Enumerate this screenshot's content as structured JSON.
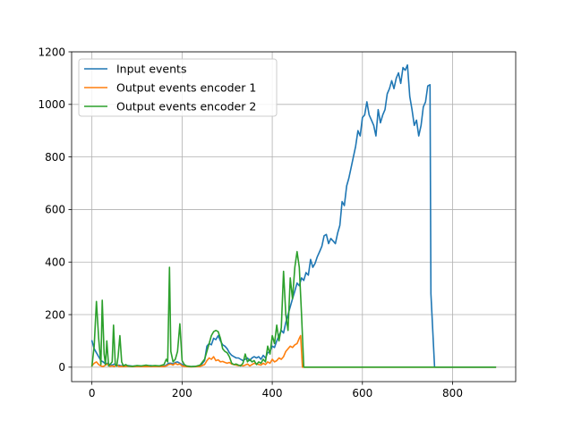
{
  "chart_data": {
    "type": "line",
    "title": "",
    "xlabel": "",
    "ylabel": "",
    "xlim": [
      -45,
      940
    ],
    "ylim": [
      -55,
      1200
    ],
    "xticks": [
      0,
      200,
      400,
      600,
      800
    ],
    "yticks": [
      0,
      200,
      400,
      600,
      800,
      1000,
      1200
    ],
    "grid": true,
    "legend_position": "upper-left",
    "series": [
      {
        "name": "Input events",
        "color": "#1f77b4",
        "points": [
          [
            0,
            100
          ],
          [
            5,
            70
          ],
          [
            10,
            55
          ],
          [
            15,
            40
          ],
          [
            20,
            25
          ],
          [
            25,
            20
          ],
          [
            30,
            12
          ],
          [
            35,
            15
          ],
          [
            40,
            10
          ],
          [
            45,
            8
          ],
          [
            50,
            12
          ],
          [
            55,
            5
          ],
          [
            60,
            8
          ],
          [
            65,
            5
          ],
          [
            70,
            8
          ],
          [
            75,
            4
          ],
          [
            80,
            6
          ],
          [
            90,
            4
          ],
          [
            100,
            5
          ],
          [
            110,
            4
          ],
          [
            120,
            4
          ],
          [
            130,
            6
          ],
          [
            140,
            4
          ],
          [
            150,
            5
          ],
          [
            160,
            4
          ],
          [
            165,
            8
          ],
          [
            170,
            15
          ],
          [
            175,
            15
          ],
          [
            180,
            12
          ],
          [
            185,
            18
          ],
          [
            190,
            20
          ],
          [
            195,
            15
          ],
          [
            200,
            10
          ],
          [
            210,
            3
          ],
          [
            220,
            2
          ],
          [
            230,
            3
          ],
          [
            240,
            4
          ],
          [
            250,
            25
          ],
          [
            255,
            80
          ],
          [
            260,
            90
          ],
          [
            265,
            85
          ],
          [
            270,
            110
          ],
          [
            275,
            105
          ],
          [
            280,
            120
          ],
          [
            285,
            100
          ],
          [
            290,
            85
          ],
          [
            295,
            80
          ],
          [
            300,
            70
          ],
          [
            305,
            55
          ],
          [
            310,
            45
          ],
          [
            315,
            40
          ],
          [
            320,
            35
          ],
          [
            325,
            35
          ],
          [
            330,
            30
          ],
          [
            335,
            25
          ],
          [
            340,
            30
          ],
          [
            345,
            35
          ],
          [
            350,
            25
          ],
          [
            355,
            35
          ],
          [
            360,
            40
          ],
          [
            365,
            35
          ],
          [
            370,
            40
          ],
          [
            375,
            30
          ],
          [
            380,
            45
          ],
          [
            385,
            35
          ],
          [
            390,
            55
          ],
          [
            395,
            60
          ],
          [
            400,
            80
          ],
          [
            405,
            75
          ],
          [
            410,
            100
          ],
          [
            415,
            120
          ],
          [
            420,
            140
          ],
          [
            425,
            130
          ],
          [
            430,
            170
          ],
          [
            435,
            200
          ],
          [
            440,
            230
          ],
          [
            445,
            260
          ],
          [
            450,
            290
          ],
          [
            455,
            320
          ],
          [
            460,
            310
          ],
          [
            465,
            340
          ],
          [
            470,
            330
          ],
          [
            475,
            360
          ],
          [
            480,
            350
          ],
          [
            485,
            410
          ],
          [
            490,
            380
          ],
          [
            495,
            395
          ],
          [
            500,
            420
          ],
          [
            505,
            440
          ],
          [
            510,
            460
          ],
          [
            515,
            500
          ],
          [
            520,
            505
          ],
          [
            525,
            470
          ],
          [
            530,
            490
          ],
          [
            535,
            480
          ],
          [
            540,
            470
          ],
          [
            545,
            510
          ],
          [
            550,
            540
          ],
          [
            555,
            630
          ],
          [
            560,
            615
          ],
          [
            565,
            690
          ],
          [
            570,
            720
          ],
          [
            575,
            760
          ],
          [
            580,
            800
          ],
          [
            585,
            840
          ],
          [
            590,
            900
          ],
          [
            595,
            880
          ],
          [
            600,
            950
          ],
          [
            605,
            960
          ],
          [
            610,
            1010
          ],
          [
            615,
            960
          ],
          [
            620,
            940
          ],
          [
            625,
            920
          ],
          [
            630,
            880
          ],
          [
            635,
            980
          ],
          [
            640,
            930
          ],
          [
            645,
            960
          ],
          [
            650,
            980
          ],
          [
            655,
            1040
          ],
          [
            660,
            1060
          ],
          [
            665,
            1090
          ],
          [
            670,
            1060
          ],
          [
            675,
            1100
          ],
          [
            680,
            1120
          ],
          [
            685,
            1080
          ],
          [
            690,
            1140
          ],
          [
            695,
            1130
          ],
          [
            700,
            1150
          ],
          [
            705,
            1030
          ],
          [
            710,
            980
          ],
          [
            715,
            920
          ],
          [
            720,
            940
          ],
          [
            725,
            880
          ],
          [
            730,
            920
          ],
          [
            735,
            990
          ],
          [
            740,
            1010
          ],
          [
            745,
            1070
          ],
          [
            750,
            1075
          ],
          [
            752,
            280
          ],
          [
            760,
            0
          ],
          [
            895,
            0
          ]
        ]
      },
      {
        "name": "Output events encoder 1",
        "color": "#ff7f0e",
        "points": [
          [
            0,
            5
          ],
          [
            5,
            15
          ],
          [
            10,
            20
          ],
          [
            15,
            10
          ],
          [
            20,
            5
          ],
          [
            25,
            2
          ],
          [
            30,
            8
          ],
          [
            35,
            12
          ],
          [
            40,
            3
          ],
          [
            45,
            5
          ],
          [
            50,
            2
          ],
          [
            55,
            10
          ],
          [
            60,
            2
          ],
          [
            65,
            3
          ],
          [
            70,
            2
          ],
          [
            80,
            4
          ],
          [
            90,
            2
          ],
          [
            100,
            3
          ],
          [
            120,
            2
          ],
          [
            140,
            3
          ],
          [
            160,
            2
          ],
          [
            165,
            5
          ],
          [
            170,
            10
          ],
          [
            175,
            12
          ],
          [
            180,
            8
          ],
          [
            185,
            15
          ],
          [
            190,
            10
          ],
          [
            195,
            12
          ],
          [
            200,
            5
          ],
          [
            210,
            2
          ],
          [
            220,
            1
          ],
          [
            230,
            2
          ],
          [
            240,
            3
          ],
          [
            250,
            10
          ],
          [
            255,
            25
          ],
          [
            260,
            35
          ],
          [
            265,
            30
          ],
          [
            270,
            40
          ],
          [
            275,
            25
          ],
          [
            280,
            28
          ],
          [
            285,
            20
          ],
          [
            290,
            22
          ],
          [
            295,
            18
          ],
          [
            300,
            15
          ],
          [
            305,
            18
          ],
          [
            310,
            12
          ],
          [
            315,
            10
          ],
          [
            320,
            8
          ],
          [
            325,
            6
          ],
          [
            330,
            8
          ],
          [
            335,
            5
          ],
          [
            340,
            8
          ],
          [
            345,
            12
          ],
          [
            350,
            5
          ],
          [
            355,
            10
          ],
          [
            360,
            15
          ],
          [
            365,
            12
          ],
          [
            370,
            10
          ],
          [
            375,
            8
          ],
          [
            380,
            15
          ],
          [
            385,
            10
          ],
          [
            390,
            20
          ],
          [
            395,
            15
          ],
          [
            400,
            30
          ],
          [
            405,
            20
          ],
          [
            410,
            25
          ],
          [
            415,
            35
          ],
          [
            420,
            30
          ],
          [
            425,
            40
          ],
          [
            430,
            60
          ],
          [
            435,
            70
          ],
          [
            440,
            80
          ],
          [
            445,
            75
          ],
          [
            450,
            85
          ],
          [
            455,
            90
          ],
          [
            460,
            110
          ],
          [
            463,
            120
          ],
          [
            467,
            0
          ],
          [
            895,
            0
          ]
        ]
      },
      {
        "name": "Output events encoder 2",
        "color": "#2ca02c",
        "points": [
          [
            0,
            5
          ],
          [
            5,
            80
          ],
          [
            10,
            250
          ],
          [
            15,
            110
          ],
          [
            20,
            10
          ],
          [
            23,
            255
          ],
          [
            27,
            50
          ],
          [
            30,
            10
          ],
          [
            33,
            100
          ],
          [
            37,
            5
          ],
          [
            40,
            10
          ],
          [
            45,
            20
          ],
          [
            48,
            160
          ],
          [
            52,
            10
          ],
          [
            55,
            5
          ],
          [
            58,
            40
          ],
          [
            62,
            120
          ],
          [
            66,
            20
          ],
          [
            70,
            5
          ],
          [
            75,
            10
          ],
          [
            80,
            5
          ],
          [
            90,
            3
          ],
          [
            100,
            6
          ],
          [
            110,
            5
          ],
          [
            120,
            8
          ],
          [
            130,
            5
          ],
          [
            140,
            6
          ],
          [
            150,
            5
          ],
          [
            160,
            10
          ],
          [
            165,
            30
          ],
          [
            168,
            20
          ],
          [
            172,
            380
          ],
          [
            175,
            60
          ],
          [
            180,
            20
          ],
          [
            185,
            30
          ],
          [
            190,
            60
          ],
          [
            195,
            165
          ],
          [
            200,
            25
          ],
          [
            205,
            10
          ],
          [
            210,
            5
          ],
          [
            220,
            2
          ],
          [
            230,
            3
          ],
          [
            240,
            8
          ],
          [
            250,
            30
          ],
          [
            255,
            60
          ],
          [
            260,
            90
          ],
          [
            265,
            120
          ],
          [
            270,
            135
          ],
          [
            275,
            140
          ],
          [
            280,
            135
          ],
          [
            285,
            110
          ],
          [
            290,
            70
          ],
          [
            295,
            60
          ],
          [
            300,
            55
          ],
          [
            305,
            40
          ],
          [
            310,
            15
          ],
          [
            315,
            10
          ],
          [
            320,
            12
          ],
          [
            325,
            8
          ],
          [
            330,
            5
          ],
          [
            335,
            15
          ],
          [
            340,
            50
          ],
          [
            345,
            20
          ],
          [
            350,
            30
          ],
          [
            355,
            20
          ],
          [
            360,
            25
          ],
          [
            365,
            10
          ],
          [
            370,
            20
          ],
          [
            375,
            15
          ],
          [
            380,
            30
          ],
          [
            385,
            20
          ],
          [
            390,
            80
          ],
          [
            395,
            50
          ],
          [
            400,
            120
          ],
          [
            405,
            90
          ],
          [
            410,
            160
          ],
          [
            415,
            100
          ],
          [
            420,
            150
          ],
          [
            425,
            365
          ],
          [
            430,
            200
          ],
          [
            435,
            140
          ],
          [
            440,
            340
          ],
          [
            445,
            260
          ],
          [
            450,
            380
          ],
          [
            455,
            440
          ],
          [
            460,
            380
          ],
          [
            465,
            200
          ],
          [
            470,
            0
          ],
          [
            895,
            0
          ]
        ]
      }
    ]
  }
}
